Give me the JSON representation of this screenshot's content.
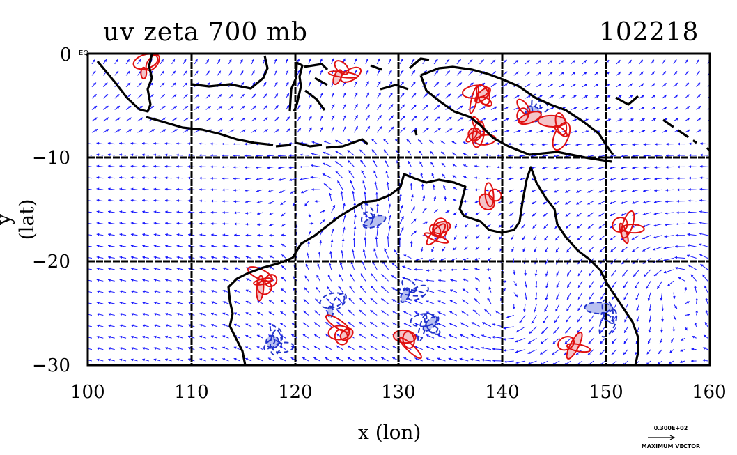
{
  "title_left": "uv zeta 700 mb",
  "title_right": "102218",
  "xlabel": "x (lon)",
  "ylabel": "y (lat)",
  "x_ticks": [
    "100",
    "110",
    "120",
    "130",
    "140",
    "150",
    "160"
  ],
  "y_ticks": [
    "0",
    "−10",
    "−20",
    "−30"
  ],
  "corner_label": "EQ",
  "legend": {
    "value": "0.300E+02",
    "label": "MAXIMUM VECTOR"
  },
  "colors": {
    "vector": "#1a1aff",
    "positive": "#e01010",
    "negative": "#2233cc",
    "positive_fill": "#f4c4c8",
    "negative_fill": "#b8c0f0",
    "coast": "#000000"
  },
  "chart_data": {
    "type": "vector-field map",
    "xlim": [
      100,
      160
    ],
    "ylim": [
      -30,
      0
    ],
    "grid_lines_x": [
      110,
      120,
      130,
      140,
      150
    ],
    "grid_lines_y": [
      -10,
      -20
    ],
    "positive_vorticity_regions": [
      {
        "lon": 106,
        "lat": -1
      },
      {
        "lon": 124.5,
        "lat": -2
      },
      {
        "lon": 138,
        "lat": -4
      },
      {
        "lon": 142,
        "lat": -6
      },
      {
        "lon": 145.5,
        "lat": -7
      },
      {
        "lon": 137.5,
        "lat": -8
      },
      {
        "lon": 138.5,
        "lat": -14
      },
      {
        "lon": 152,
        "lat": -16.5
      },
      {
        "lon": 117,
        "lat": -22
      },
      {
        "lon": 147,
        "lat": -28
      },
      {
        "lon": 124.5,
        "lat": -27
      },
      {
        "lon": 133.5,
        "lat": -17.5
      },
      {
        "lon": 131,
        "lat": -27.5
      }
    ],
    "negative_vorticity_regions": [
      {
        "lon": 124,
        "lat": -24
      },
      {
        "lon": 131,
        "lat": -23
      },
      {
        "lon": 133,
        "lat": -26
      },
      {
        "lon": 127,
        "lat": -16
      },
      {
        "lon": 150,
        "lat": -25
      },
      {
        "lon": 118,
        "lat": -28
      },
      {
        "lon": 143,
        "lat": -5.5
      }
    ]
  }
}
